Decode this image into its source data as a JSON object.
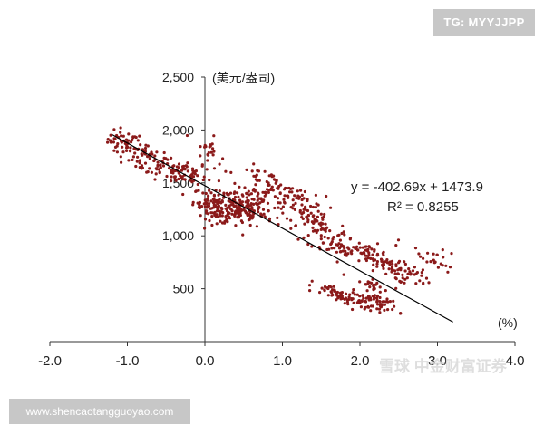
{
  "watermarks": {
    "telegram": "TG: MYYJJPP",
    "website": "www.shencaotangguoyao.com",
    "corner": "雪球 中金财富证券"
  },
  "chart_data": {
    "type": "scatter",
    "title": "",
    "ylabel": "(美元/盎司)",
    "xlabel": "(%)",
    "xlim": [
      -2.0,
      4.0
    ],
    "ylim": [
      0,
      2500
    ],
    "x_ticks": [
      "-2.0",
      "-1.0",
      "0.0",
      "1.0",
      "2.0",
      "3.0",
      "4.0"
    ],
    "y_ticks": [
      "500",
      "1,000",
      "1,500",
      "2,000",
      "2,500"
    ],
    "y_tick_values": [
      500,
      1000,
      1500,
      2000,
      2500
    ],
    "x_tick_values": [
      -2.0,
      -1.0,
      0.0,
      1.0,
      2.0,
      3.0,
      4.0
    ],
    "marker_color": "#8b1a1a",
    "trendline": {
      "equation": "y = -402.69x + 1473.9",
      "r_squared": "R² = 0.8255",
      "slope": -402.69,
      "intercept": 1473.9,
      "x_range": [
        -1.2,
        3.2
      ]
    },
    "clusters": [
      {
        "x": -1.05,
        "y": 1870,
        "sx": 0.1,
        "sy": 70,
        "n": 45
      },
      {
        "x": -0.75,
        "y": 1720,
        "sx": 0.15,
        "sy": 80,
        "n": 55
      },
      {
        "x": -0.45,
        "y": 1640,
        "sx": 0.15,
        "sy": 70,
        "n": 45
      },
      {
        "x": -0.15,
        "y": 1580,
        "sx": 0.12,
        "sy": 60,
        "n": 30
      },
      {
        "x": 0.05,
        "y": 1800,
        "sx": 0.08,
        "sy": 70,
        "n": 25
      },
      {
        "x": 0.15,
        "y": 1270,
        "sx": 0.15,
        "sy": 70,
        "n": 120
      },
      {
        "x": 0.45,
        "y": 1250,
        "sx": 0.15,
        "sy": 70,
        "n": 110
      },
      {
        "x": 0.75,
        "y": 1300,
        "sx": 0.2,
        "sy": 80,
        "n": 70
      },
      {
        "x": 0.8,
        "y": 1480,
        "sx": 0.2,
        "sy": 70,
        "n": 55
      },
      {
        "x": 1.2,
        "y": 1340,
        "sx": 0.18,
        "sy": 60,
        "n": 45
      },
      {
        "x": 1.45,
        "y": 1120,
        "sx": 0.2,
        "sy": 60,
        "n": 55
      },
      {
        "x": 1.75,
        "y": 900,
        "sx": 0.22,
        "sy": 55,
        "n": 65
      },
      {
        "x": 2.1,
        "y": 840,
        "sx": 0.2,
        "sy": 50,
        "n": 40
      },
      {
        "x": 2.35,
        "y": 700,
        "sx": 0.15,
        "sy": 50,
        "n": 40
      },
      {
        "x": 2.6,
        "y": 660,
        "sx": 0.15,
        "sy": 50,
        "n": 30
      },
      {
        "x": 2.9,
        "y": 780,
        "sx": 0.2,
        "sy": 60,
        "n": 25
      },
      {
        "x": 1.8,
        "y": 420,
        "sx": 0.2,
        "sy": 35,
        "n": 70
      },
      {
        "x": 2.2,
        "y": 380,
        "sx": 0.15,
        "sy": 35,
        "n": 50
      },
      {
        "x": 2.15,
        "y": 530,
        "sx": 0.12,
        "sy": 40,
        "n": 25
      }
    ]
  }
}
